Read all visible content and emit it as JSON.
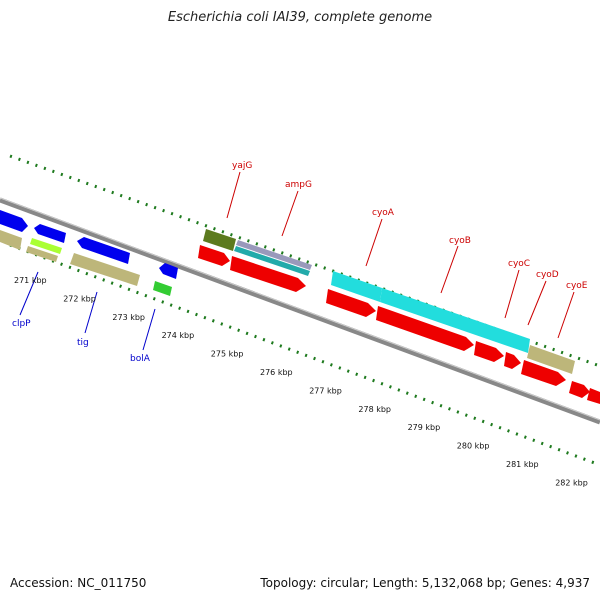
{
  "title": "Escherichia coli IAI39, complete genome",
  "footer": {
    "accession": "Accession: NC_011750",
    "topology": "Topology: circular; Length: 5,132,068 bp; Genes: 4,937"
  },
  "scale_labels": [
    "271 kbp",
    "272 kbp",
    "273 kbp",
    "274 kbp",
    "275 kbp",
    "276 kbp",
    "277 kbp",
    "278 kbp",
    "279 kbp",
    "280 kbp",
    "281 kbp",
    "282 kbp"
  ],
  "gene_labels_top": [
    {
      "name": "yajG",
      "color": "#cc0000"
    },
    {
      "name": "ampG",
      "color": "#cc0000"
    },
    {
      "name": "cyoA",
      "color": "#cc0000"
    },
    {
      "name": "cyoB",
      "color": "#cc0000"
    },
    {
      "name": "cyoC",
      "color": "#cc0000"
    },
    {
      "name": "cyoD",
      "color": "#cc0000"
    },
    {
      "name": "cyoE",
      "color": "#cc0000"
    }
  ],
  "gene_labels_bottom": [
    {
      "name": "clpP",
      "color": "#0000cc"
    },
    {
      "name": "tig",
      "color": "#0000cc"
    },
    {
      "name": "bolA",
      "color": "#0000cc"
    }
  ],
  "colors": {
    "cds_reverse": "#0000ee",
    "cds_forward": "#ee0000",
    "gene_tan": "#bdb67a",
    "gene_green": "#33cc33",
    "gene_lime": "#aaff33",
    "gene_olive": "#5c7a1e",
    "gene_cyan": "#22dddd",
    "backbone": "#888888",
    "gc_dots": "#1e7a1e"
  }
}
